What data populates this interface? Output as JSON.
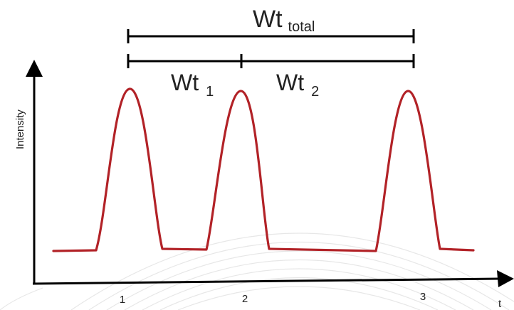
{
  "diagram": {
    "y_axis_label": "Intensity",
    "x_axis_label": "t",
    "peak_labels": [
      "1",
      "2",
      "3"
    ],
    "interval_total": {
      "main": "Wt",
      "sub": "total"
    },
    "interval_1": {
      "main": "Wt",
      "sub": "1"
    },
    "interval_2": {
      "main": "Wt",
      "sub": "2"
    },
    "colors": {
      "trace": "#b22227",
      "axes": "#000000",
      "background_arcs": "#e7e7e7"
    }
  }
}
